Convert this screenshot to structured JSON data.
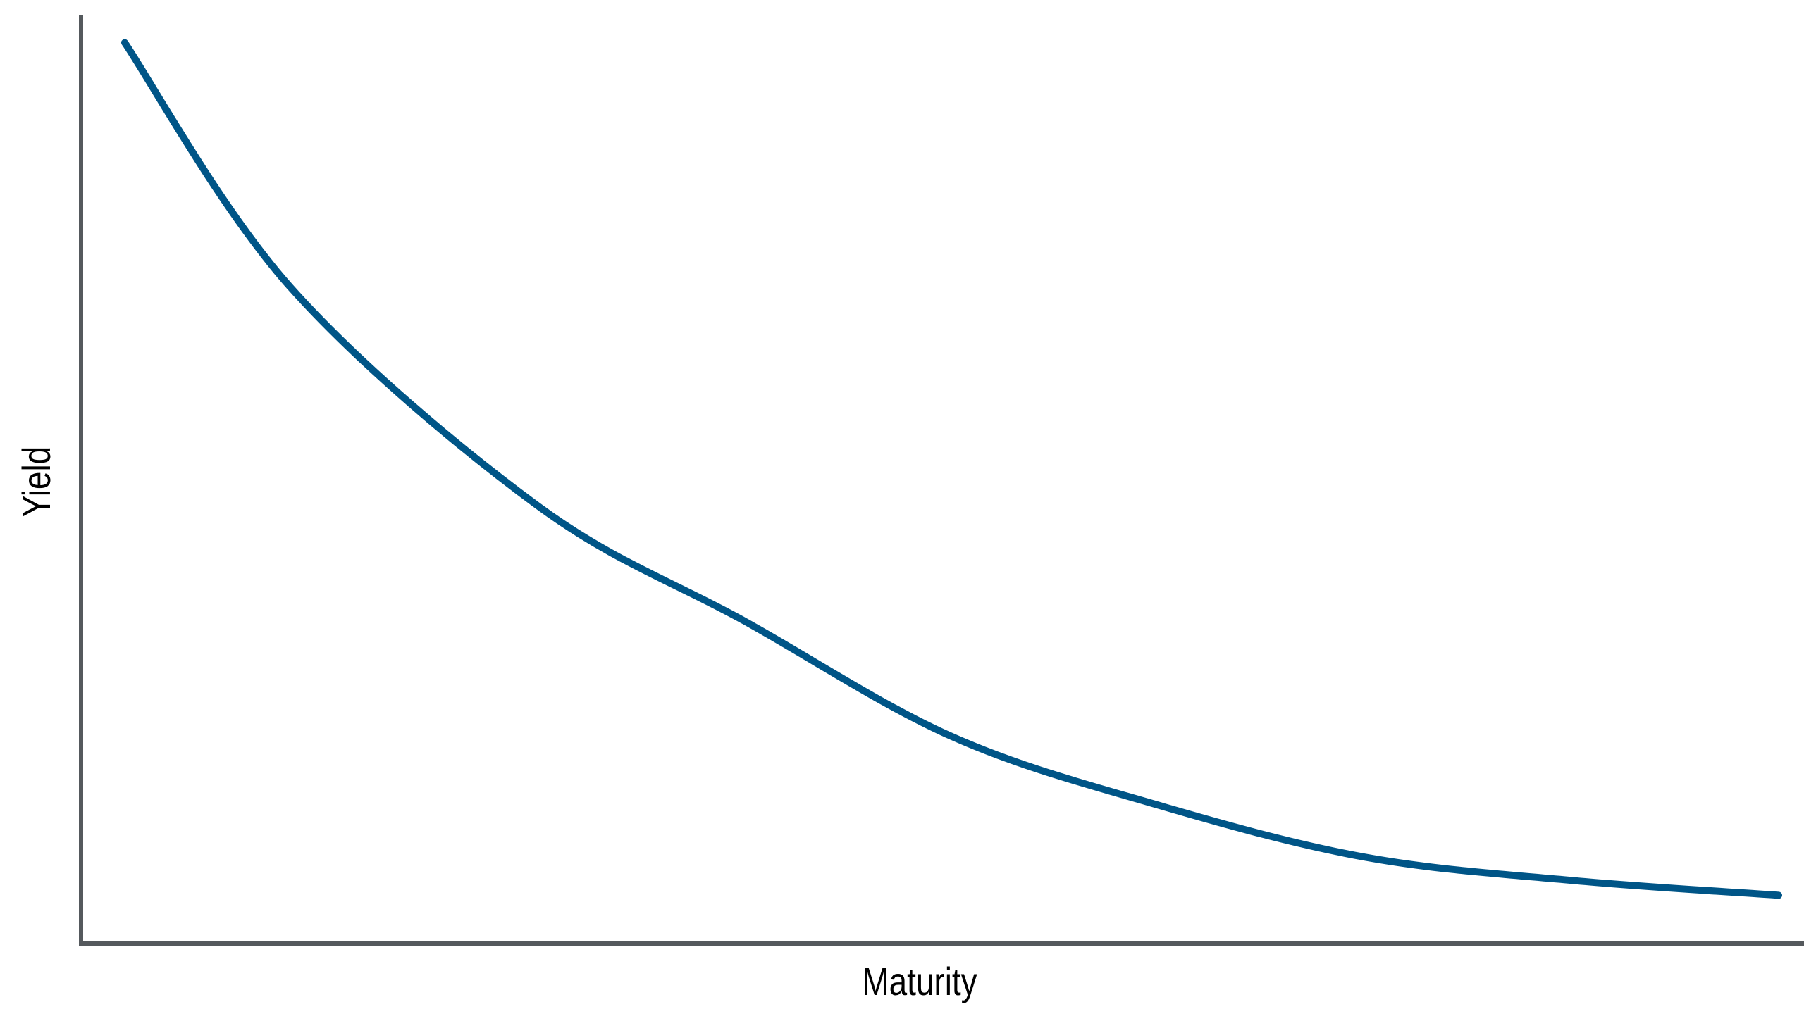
{
  "chart_data": {
    "type": "line",
    "title": "",
    "xlabel": "Maturity",
    "ylabel": "Yield",
    "x_ticks": [],
    "y_ticks": [],
    "grid": false,
    "legend": "none",
    "xlim": [
      0,
      1
    ],
    "ylim": [
      0,
      100
    ],
    "series": [
      {
        "color": "#005587",
        "x": [
          0,
          0.1,
          0.25,
          0.375,
          0.5,
          0.625,
          0.75,
          0.875,
          1
        ],
        "y": [
          97,
          70.7,
          47.1,
          34.7,
          22.3,
          14.9,
          9.3,
          6.8,
          5.2
        ]
      }
    ],
    "axis_color": "#55595d"
  }
}
